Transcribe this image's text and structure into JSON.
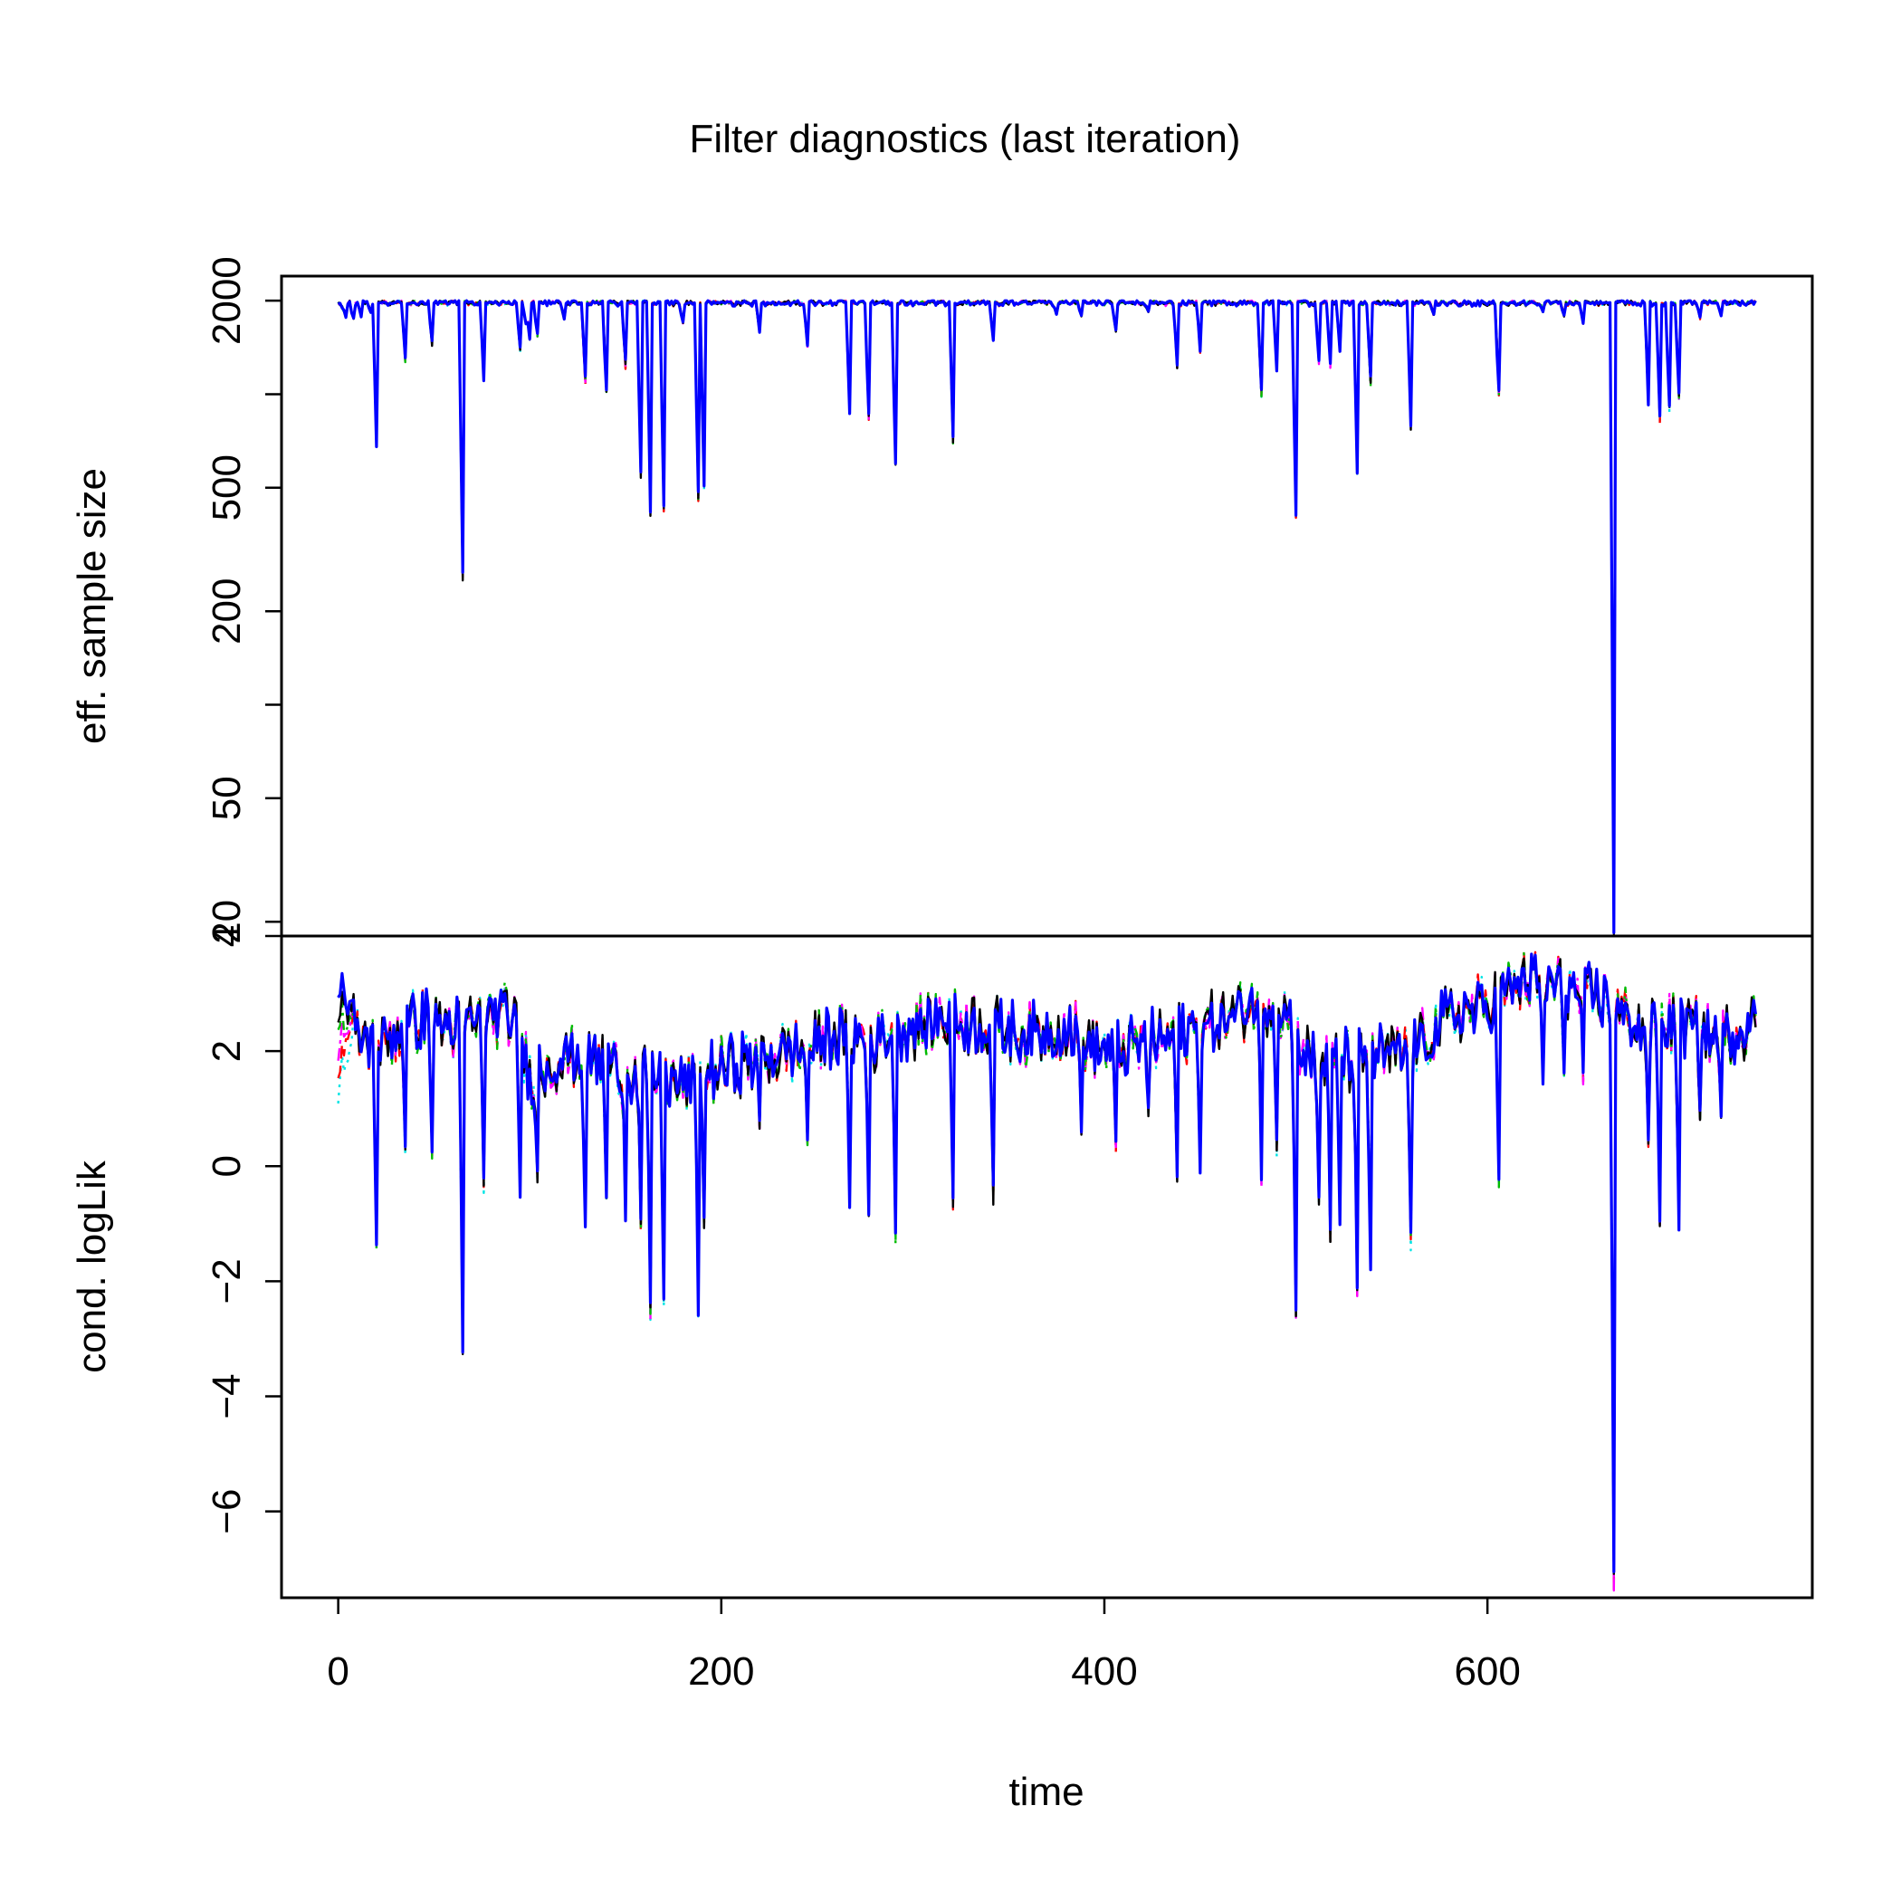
{
  "chart_data": {
    "type": "line",
    "title": "Filter diagnostics (last iteration)",
    "xlabel": "time",
    "xlim": [
      0,
      740
    ],
    "x_ticks": [
      {
        "v": 0,
        "label": "0"
      },
      {
        "v": 200,
        "label": "200"
      },
      {
        "v": 400,
        "label": "400"
      },
      {
        "v": 600,
        "label": "600"
      }
    ],
    "colors": [
      "#000000",
      "#ff0000",
      "#00bb00",
      "#0000ff",
      "#00e5e5",
      "#ff00ff"
    ],
    "panels": [
      {
        "id": "ess",
        "ylabel": "eff. sample size",
        "scale": "log",
        "ylim": [
          18,
          2400
        ],
        "ticks": [
          {
            "v": 20,
            "label": "20"
          },
          {
            "v": 50,
            "label": "50"
          },
          {
            "v": 100,
            "label": ""
          },
          {
            "v": 200,
            "label": "200"
          },
          {
            "v": 500,
            "label": "500"
          },
          {
            "v": 1000,
            "label": ""
          },
          {
            "v": 2000,
            "label": "2000"
          }
        ],
        "baseline": 2000,
        "range_x": [
          0,
          740
        ],
        "dips": [
          [
            2,
            1900
          ],
          [
            4,
            1780
          ],
          [
            8,
            1750
          ],
          [
            12,
            1780
          ],
          [
            17,
            1850
          ],
          [
            20,
            700
          ],
          [
            35,
            1300
          ],
          [
            49,
            1450
          ],
          [
            65,
            260
          ],
          [
            76,
            1150
          ],
          [
            95,
            1400
          ],
          [
            98,
            1700
          ],
          [
            100,
            1500
          ],
          [
            104,
            1550
          ],
          [
            118,
            1750
          ],
          [
            129,
            1100
          ],
          [
            140,
            1050
          ],
          [
            150,
            1250
          ],
          [
            158,
            550
          ],
          [
            163,
            420
          ],
          [
            170,
            430
          ],
          [
            180,
            1700
          ],
          [
            188,
            470
          ],
          [
            191,
            510
          ],
          [
            220,
            1600
          ],
          [
            245,
            1450
          ],
          [
            267,
            900
          ],
          [
            277,
            850
          ],
          [
            291,
            600
          ],
          [
            321,
            720
          ],
          [
            342,
            1500
          ],
          [
            375,
            1800
          ],
          [
            388,
            1800
          ],
          [
            406,
            1600
          ],
          [
            423,
            1850
          ],
          [
            438,
            1250
          ],
          [
            450,
            1400
          ],
          [
            482,
            1000
          ],
          [
            490,
            1200
          ],
          [
            500,
            410
          ],
          [
            512,
            1300
          ],
          [
            518,
            1250
          ],
          [
            523,
            1400
          ],
          [
            532,
            560
          ],
          [
            539,
            1100
          ],
          [
            560,
            800
          ],
          [
            572,
            1800
          ],
          [
            606,
            1000
          ],
          [
            629,
            1850
          ],
          [
            640,
            1800
          ],
          [
            650,
            1700
          ],
          [
            666,
            19
          ],
          [
            684,
            950
          ],
          [
            690,
            830
          ],
          [
            695,
            900
          ],
          [
            700,
            1000
          ],
          [
            711,
            1750
          ],
          [
            722,
            1800
          ]
        ]
      },
      {
        "id": "loglik",
        "ylabel": "cond. logLik",
        "scale": "linear",
        "ylim": [
          -7.5,
          4.0
        ],
        "ticks": [
          {
            "v": -6,
            "label": "−6"
          },
          {
            "v": -4,
            "label": "−4"
          },
          {
            "v": -2,
            "label": "−2"
          },
          {
            "v": 0,
            "label": "0"
          },
          {
            "v": 2,
            "label": "2"
          },
          {
            "v": 4,
            "label": "4"
          }
        ],
        "range_x": [
          0,
          740
        ],
        "trend": [
          [
            0,
            2.5
          ],
          [
            10,
            2.3
          ],
          [
            20,
            2.0
          ],
          [
            30,
            2.3
          ],
          [
            45,
            2.6
          ],
          [
            60,
            2.4
          ],
          [
            80,
            2.6
          ],
          [
            90,
            2.6
          ],
          [
            100,
            1.6
          ],
          [
            120,
            1.9
          ],
          [
            140,
            1.8
          ],
          [
            160,
            1.6
          ],
          [
            180,
            1.4
          ],
          [
            200,
            1.7
          ],
          [
            220,
            1.9
          ],
          [
            240,
            2.0
          ],
          [
            260,
            2.3
          ],
          [
            280,
            2.2
          ],
          [
            300,
            2.4
          ],
          [
            320,
            2.6
          ],
          [
            340,
            2.4
          ],
          [
            360,
            2.3
          ],
          [
            380,
            2.4
          ],
          [
            400,
            2.0
          ],
          [
            420,
            2.1
          ],
          [
            440,
            2.3
          ],
          [
            460,
            2.5
          ],
          [
            480,
            2.9
          ],
          [
            495,
            2.7
          ],
          [
            505,
            1.9
          ],
          [
            520,
            1.8
          ],
          [
            540,
            1.9
          ],
          [
            560,
            2.0
          ],
          [
            580,
            2.6
          ],
          [
            600,
            2.8
          ],
          [
            620,
            3.2
          ],
          [
            640,
            3.1
          ],
          [
            660,
            2.9
          ],
          [
            680,
            2.4
          ],
          [
            700,
            2.5
          ],
          [
            720,
            2.2
          ],
          [
            740,
            2.5
          ]
        ],
        "dips": [
          [
            20,
            -1.3
          ],
          [
            35,
            0.3
          ],
          [
            49,
            0.3
          ],
          [
            65,
            -3.1
          ],
          [
            76,
            -0.3
          ],
          [
            95,
            -0.4
          ],
          [
            104,
            -0.2
          ],
          [
            129,
            -0.9
          ],
          [
            140,
            -0.5
          ],
          [
            150,
            -0.8
          ],
          [
            158,
            -1.0
          ],
          [
            163,
            -2.5
          ],
          [
            170,
            -2.3
          ],
          [
            188,
            -2.5
          ],
          [
            191,
            -1.0
          ],
          [
            220,
            0.7
          ],
          [
            245,
            0.5
          ],
          [
            267,
            -0.6
          ],
          [
            277,
            -0.7
          ],
          [
            291,
            -1.2
          ],
          [
            321,
            -0.6
          ],
          [
            342,
            -0.5
          ],
          [
            388,
            0.6
          ],
          [
            406,
            0.4
          ],
          [
            423,
            1.0
          ],
          [
            438,
            -0.1
          ],
          [
            450,
            0.0
          ],
          [
            482,
            -0.2
          ],
          [
            490,
            0.3
          ],
          [
            500,
            -2.5
          ],
          [
            512,
            -0.5
          ],
          [
            518,
            -1.2
          ],
          [
            523,
            -0.9
          ],
          [
            532,
            -2.1
          ],
          [
            539,
            -1.7
          ],
          [
            560,
            -1.3
          ],
          [
            606,
            -0.2
          ],
          [
            629,
            1.6
          ],
          [
            640,
            1.7
          ],
          [
            650,
            1.5
          ],
          [
            666,
            -7.2
          ],
          [
            684,
            0.5
          ],
          [
            690,
            -0.9
          ],
          [
            700,
            -1.0
          ],
          [
            711,
            0.9
          ],
          [
            722,
            1.0
          ]
        ]
      }
    ]
  }
}
